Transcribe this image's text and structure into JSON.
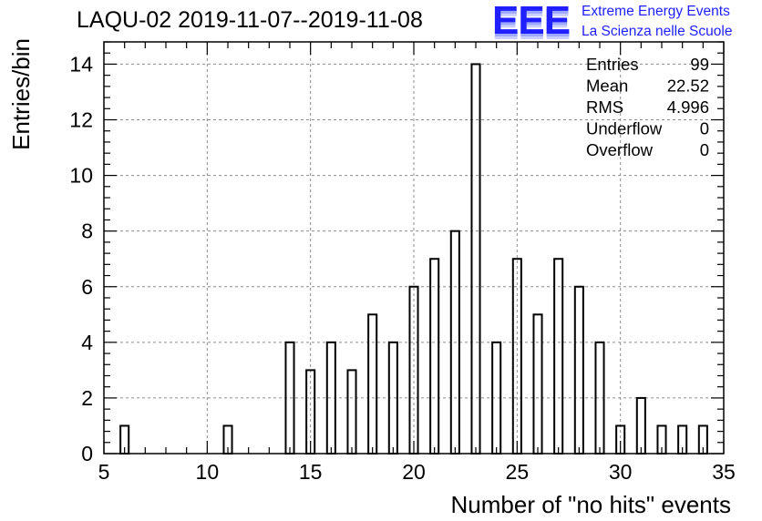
{
  "title": "LAQU-02 2019-11-07--2019-11-08",
  "logo": {
    "letters": "EEE",
    "line1": "Extreme Energy Events",
    "line2": "La Scienza nelle Scuole"
  },
  "colors": {
    "bars": "#000000",
    "grid": "#8c8c8c",
    "logo": "#1f1fff"
  },
  "stats": [
    {
      "label": "Entries",
      "value": "99"
    },
    {
      "label": "Mean",
      "value": "22.52"
    },
    {
      "label": "RMS",
      "value": "4.996"
    },
    {
      "label": "Underflow",
      "value": "0"
    },
    {
      "label": "Overflow",
      "value": "0"
    }
  ],
  "chart_data": {
    "type": "bar",
    "title": "LAQU-02 2019-11-07--2019-11-08",
    "xlabel": "Number of \"no hits\" events",
    "ylabel": "Entries/bin",
    "xlim": [
      5,
      35
    ],
    "ylim": [
      0,
      14.8
    ],
    "xticks": [
      5,
      10,
      15,
      20,
      25,
      30,
      35
    ],
    "yticks": [
      0,
      2,
      4,
      6,
      8,
      10,
      12,
      14
    ],
    "grid": true,
    "bin_width": 0.4,
    "bins": [
      {
        "x": 6,
        "value": 1
      },
      {
        "x": 11,
        "value": 1
      },
      {
        "x": 14,
        "value": 4
      },
      {
        "x": 15,
        "value": 3
      },
      {
        "x": 16,
        "value": 4
      },
      {
        "x": 17,
        "value": 3
      },
      {
        "x": 18,
        "value": 5
      },
      {
        "x": 19,
        "value": 4
      },
      {
        "x": 20,
        "value": 6
      },
      {
        "x": 21,
        "value": 7
      },
      {
        "x": 22,
        "value": 8
      },
      {
        "x": 23,
        "value": 14
      },
      {
        "x": 24,
        "value": 4
      },
      {
        "x": 25,
        "value": 7
      },
      {
        "x": 26,
        "value": 5
      },
      {
        "x": 27,
        "value": 7
      },
      {
        "x": 28,
        "value": 6
      },
      {
        "x": 29,
        "value": 4
      },
      {
        "x": 30,
        "value": 1
      },
      {
        "x": 31,
        "value": 2
      },
      {
        "x": 32,
        "value": 1
      },
      {
        "x": 33,
        "value": 1
      },
      {
        "x": 34,
        "value": 1
      }
    ]
  }
}
